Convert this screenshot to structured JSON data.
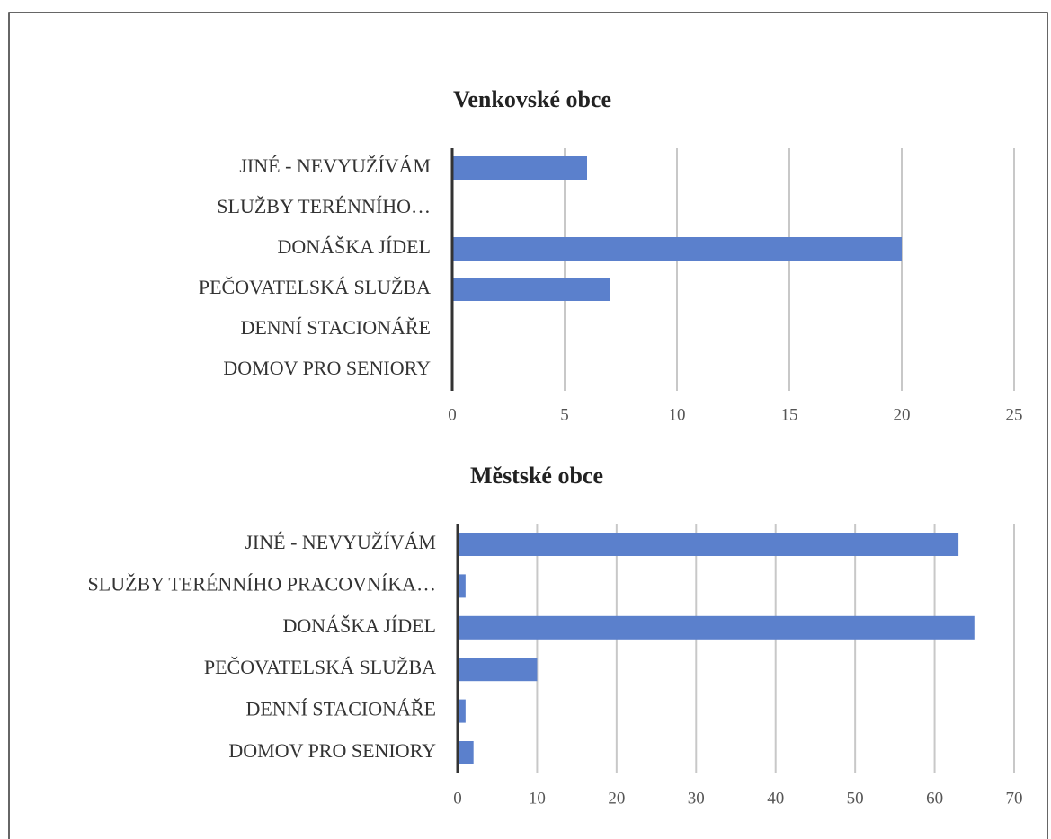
{
  "chart_data": [
    {
      "type": "bar",
      "orientation": "horizontal",
      "title": "Venkovské obce",
      "categories": [
        "JINÉ - NEVYUŽÍVÁM",
        "SLUŽBY TERÉNNÍHO…",
        "DONÁŠKA JÍDEL",
        "PEČOVATELSKÁ SLUŽBA",
        "DENNÍ STACIONÁŘE",
        "DOMOV PRO SENIORY"
      ],
      "values": [
        6,
        0,
        20,
        7,
        0,
        0
      ],
      "color": "#5b80cc",
      "xlim": [
        0,
        25
      ],
      "xticks": [
        0,
        5,
        10,
        15,
        20,
        25
      ],
      "grid": true
    },
    {
      "type": "bar",
      "orientation": "horizontal",
      "title": "Městské obce",
      "categories": [
        "JINÉ - NEVYUŽÍVÁM",
        "SLUŽBY TERÉNNÍHO PRACOVNÍKA…",
        "DONÁŠKA JÍDEL",
        "PEČOVATELSKÁ SLUŽBA",
        "DENNÍ STACIONÁŘE",
        "DOMOV PRO SENIORY"
      ],
      "values": [
        63,
        1,
        65,
        10,
        1,
        2
      ],
      "color": "#5b80cc",
      "xlim": [
        0,
        70
      ],
      "xticks": [
        0,
        10,
        20,
        30,
        40,
        50,
        60,
        70
      ],
      "grid": true
    }
  ]
}
